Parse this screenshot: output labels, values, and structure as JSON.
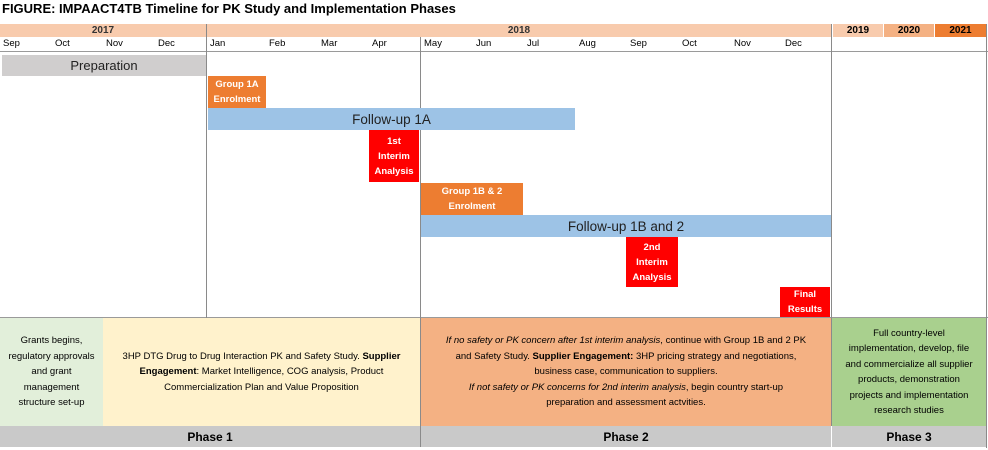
{
  "title": "FIGURE: IMPAACT4TB Timeline for PK Study and Implementation Phases",
  "years": {
    "y2017": "2017",
    "y2018": "2018",
    "y2019": "2019",
    "y2020": "2020",
    "y2021": "2021"
  },
  "year_colors": {
    "2019": "#f8cbad",
    "2020": "#f4b183",
    "2021": "#ed7d31"
  },
  "months": [
    "Sep",
    "Oct",
    "Nov",
    "Dec",
    "Jan",
    "Feb",
    "Mar",
    "Apr",
    "May",
    "Jun",
    "Jul",
    "Aug",
    "Sep",
    "Oct",
    "Nov",
    "Dec"
  ],
  "bars": {
    "preparation": "Preparation",
    "group1a_l1": "Group 1A",
    "group1a_l2": "Enrolment",
    "followup1a": "Follow-up 1A",
    "interim1_l1": "1st",
    "interim1_l2": "Interim",
    "interim1_l3": "Analysis",
    "group1b_l1": "Group 1B & 2",
    "group1b_l2": "Enrolment",
    "followup1b": "Follow-up 1B and 2",
    "interim2_l1": "2nd",
    "interim2_l2": "Interim",
    "interim2_l3": "Analysis",
    "final_l1": "Final",
    "final_l2": "Results"
  },
  "descriptions": {
    "grants_l1": "Grants begins,",
    "grants_l2": "regulatory approvals",
    "grants_l3": "and grant",
    "grants_l4": "management",
    "grants_l5": "structure set-up",
    "study1_a": "3HP DTG Drug to Drug Interaction PK and Safety Study.",
    "study1_b": "Supplier",
    "study1_c": "Engagement",
    "study1_d": ": Market Intelligence, COG analysis, Product",
    "study1_e": "Commercialization Plan and Value Proposition",
    "p2_a": "If no safety or PK concern after 1st interim analysis",
    "p2_b": ", continue with Group 1B and 2 PK",
    "p2_c": "and Safety Study.",
    "p2_d": "Supplier Engagement:",
    "p2_e": "3HP pricing strategy and negotiations,",
    "p2_f": "business case, communication to suppliers.",
    "p2_g": "If not safety or PK concerns for 2nd interim analysis",
    "p2_h": ", begin country start-up",
    "p2_i": "preparation and assessment actvities.",
    "p3_l1": "Full country-level",
    "p3_l2": "implementation, develop, file",
    "p3_l3": "and commercialize all supplier",
    "p3_l4": "products, demonstration",
    "p3_l5": "projects and implementation",
    "p3_l6": "research studies"
  },
  "phases": {
    "phase1": "Phase 1",
    "phase2": "Phase 2",
    "phase3": "Phase 3"
  },
  "colors": {
    "grey": "#d0cece",
    "orange": "#ed7d31",
    "blue": "#9dc3e6",
    "red": "#ff0000",
    "desc_green": "#e2efda",
    "desc_yellow": "#fff2cc",
    "desc_orange": "#f4b183",
    "desc_green2": "#a9d08e",
    "phase_grey": "#c9c9c9"
  }
}
